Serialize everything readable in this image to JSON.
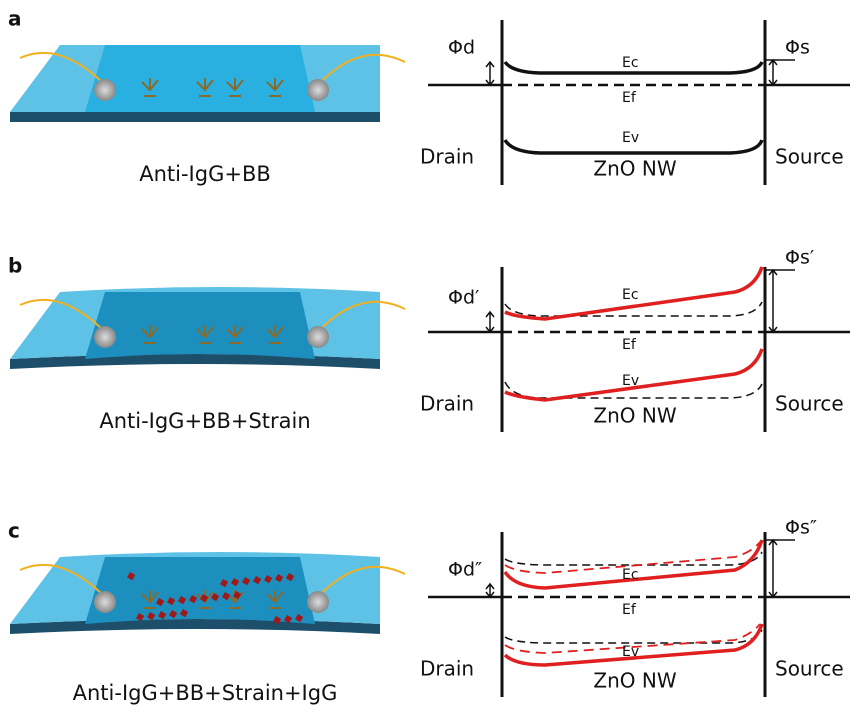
{
  "panels": [
    {
      "label": "a",
      "caption": "Anti-IgG+BB",
      "phi_drain": "Φd",
      "phi_source": "Φs",
      "conduction": "Ec",
      "fermi": "Ef",
      "valence": "Ev",
      "drain": "Drain",
      "source": "Source",
      "nanowire": "ZnO NW"
    },
    {
      "label": "b",
      "caption": "Anti-IgG+BB+Strain",
      "phi_drain": "Φd′",
      "phi_source": "Φs′",
      "conduction": "Ec",
      "fermi": "Ef",
      "valence": "Ev",
      "drain": "Drain",
      "source": "Source",
      "nanowire": "ZnO NW"
    },
    {
      "label": "c",
      "caption": "Anti-IgG+BB+Strain+IgG",
      "phi_drain": "Φd″",
      "phi_source": "Φs″",
      "conduction": "Ec",
      "fermi": "Ef",
      "valence": "Ev",
      "drain": "Drain",
      "source": "Source",
      "nanowire": "ZnO NW"
    }
  ]
}
